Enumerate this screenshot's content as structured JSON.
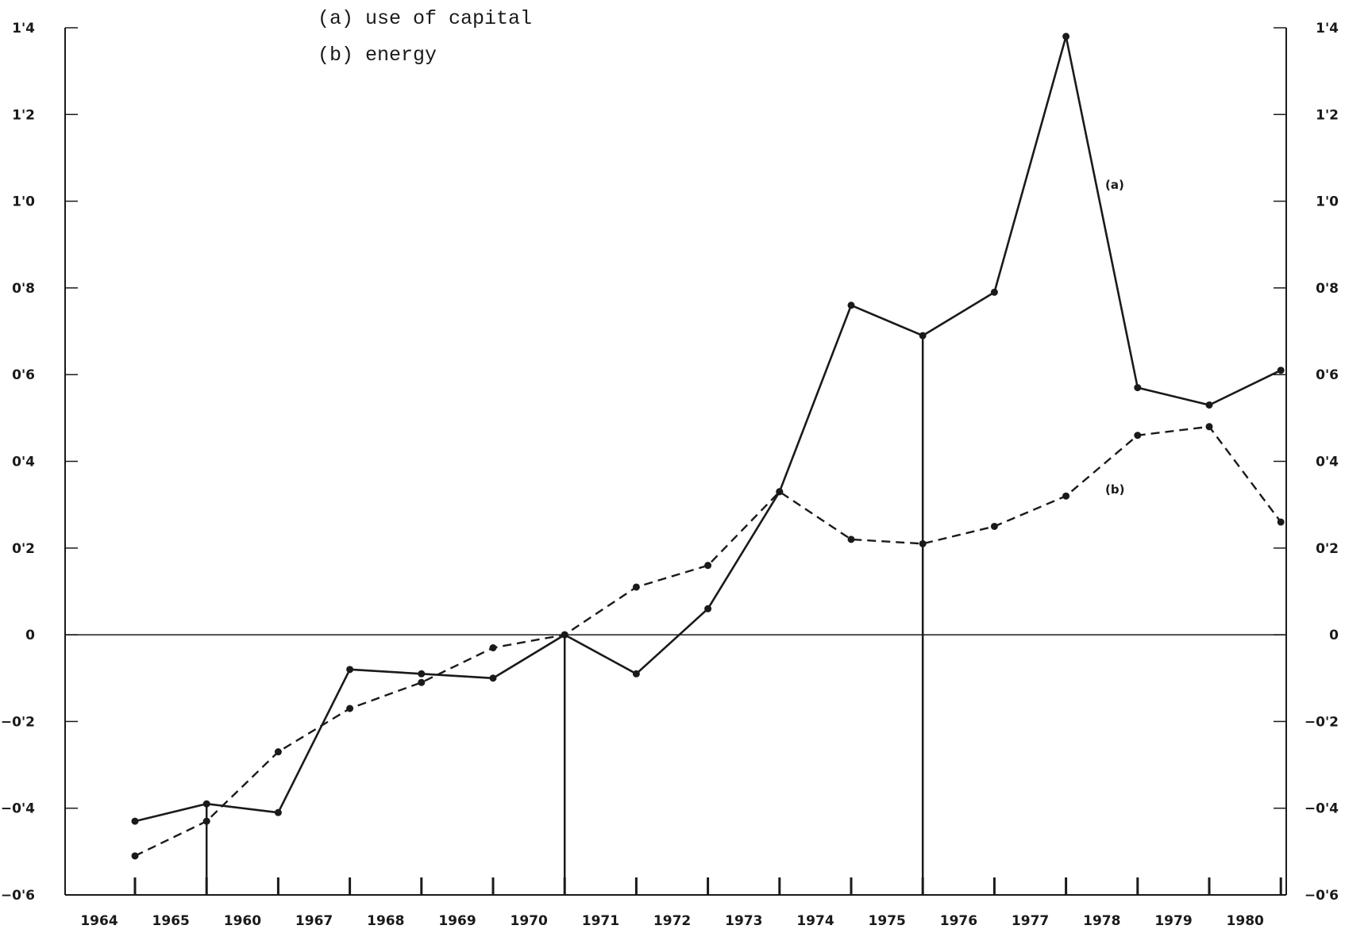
{
  "chart_data": {
    "type": "line",
    "legend": [
      "(a)  use of capital",
      "(b)  energy"
    ],
    "x_tick_labels": [
      "1964",
      "1965",
      "1960",
      "1967",
      "1968",
      "1969",
      "1970",
      "1971",
      "1972",
      "1973",
      "1974",
      "1975",
      "1976",
      "1977",
      "1978",
      "1979",
      "1980"
    ],
    "y_ticks": [
      1.4,
      1.2,
      1.0,
      0.8,
      0.6,
      0.4,
      0.2,
      0,
      -0.2,
      -0.4,
      -0.6
    ],
    "y_tick_labels": [
      "1'4",
      "1'2",
      "1'0",
      "0'8",
      "0'6",
      "0'4",
      "0'2",
      "0",
      "−0'2",
      "−0'4",
      "−0'6"
    ],
    "ylim": [
      -0.6,
      1.4
    ],
    "x_points": [
      0,
      1,
      2,
      3,
      4,
      5,
      6,
      7,
      8,
      9,
      10,
      11,
      12,
      13,
      14,
      15,
      16
    ],
    "series": [
      {
        "name": "(a)",
        "style": "solid",
        "values": [
          -0.43,
          -0.39,
          -0.41,
          -0.08,
          -0.09,
          -0.1,
          0.0,
          -0.09,
          0.06,
          0.33,
          0.76,
          0.69,
          0.79,
          1.38,
          0.57,
          0.53,
          0.61
        ]
      },
      {
        "name": "(b)",
        "style": "dashed",
        "values": [
          -0.51,
          -0.43,
          -0.27,
          -0.17,
          -0.11,
          -0.03,
          0.0,
          0.11,
          0.16,
          0.33,
          0.22,
          0.21,
          0.25,
          0.32,
          0.46,
          0.48,
          0.26
        ]
      }
    ],
    "vertical_markers_at": [
      1,
      6,
      11
    ],
    "grid": false,
    "legend_placement": "top-left"
  }
}
